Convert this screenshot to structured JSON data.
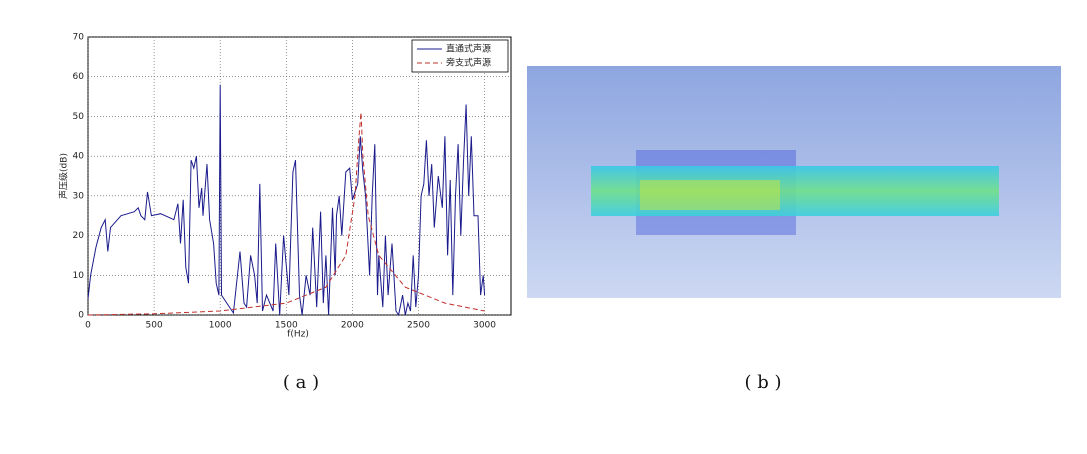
{
  "chart_data": {
    "type": "line",
    "xlabel": "f(Hz)",
    "ylabel": "声压级(dB)",
    "xlim": [
      0,
      3200
    ],
    "xticks": [
      0,
      500,
      1000,
      1500,
      2000,
      2500,
      3000
    ],
    "ylim": [
      0,
      70
    ],
    "yticks": [
      0,
      10,
      20,
      30,
      40,
      50,
      60,
      70
    ],
    "grid": true,
    "legend": "upper right",
    "series": [
      {
        "name": "直通式声源",
        "color": "#1a1a8c",
        "style": "solid",
        "x": [
          0,
          20,
          60,
          100,
          130,
          150,
          170,
          250,
          350,
          380,
          400,
          430,
          450,
          480,
          550,
          650,
          680,
          700,
          720,
          740,
          760,
          780,
          800,
          820,
          840,
          860,
          870,
          900,
          920,
          950,
          970,
          990,
          1000,
          1010,
          1050,
          1100,
          1150,
          1180,
          1200,
          1230,
          1260,
          1280,
          1300,
          1320,
          1350,
          1400,
          1420,
          1450,
          1480,
          1520,
          1550,
          1570,
          1600,
          1620,
          1650,
          1680,
          1700,
          1730,
          1760,
          1780,
          1800,
          1820,
          1850,
          1870,
          1880,
          1900,
          1920,
          1950,
          1980,
          2000,
          2040,
          2060,
          2080,
          2100,
          2130,
          2150,
          2170,
          2190,
          2200,
          2230,
          2250,
          2270,
          2300,
          2330,
          2350,
          2380,
          2400,
          2420,
          2440,
          2460,
          2480,
          2500,
          2520,
          2540,
          2560,
          2580,
          2600,
          2620,
          2650,
          2680,
          2700,
          2720,
          2740,
          2760,
          2780,
          2800,
          2820,
          2840,
          2860,
          2880,
          2900,
          2920,
          2950,
          2970,
          2990,
          3000
        ],
        "values": [
          4,
          10,
          17,
          22,
          24,
          16,
          22,
          25,
          26,
          27,
          25,
          24,
          31,
          25,
          25.5,
          24,
          28,
          18,
          29,
          12,
          8,
          39,
          37,
          40,
          27,
          32,
          25,
          38,
          24,
          18,
          8,
          5,
          58,
          5,
          3,
          0.5,
          16,
          3,
          2,
          15,
          10,
          3,
          33,
          1,
          5,
          1,
          18,
          0,
          20,
          5,
          36,
          39,
          5,
          0,
          10,
          5,
          22,
          2,
          26,
          3,
          15,
          0,
          27,
          10,
          25,
          30,
          20,
          36,
          37,
          29,
          33,
          45,
          36,
          30,
          10,
          30,
          43,
          5,
          15,
          2,
          20,
          5,
          18,
          1,
          0,
          5,
          0,
          3,
          1,
          15,
          2,
          10,
          30,
          33,
          44,
          30,
          38,
          22,
          35,
          27,
          45,
          15,
          34,
          5,
          30,
          43,
          20,
          38,
          53,
          30,
          45,
          25,
          25,
          5,
          10,
          5
        ]
      },
      {
        "name": "旁支式声源",
        "color": "#c0302a",
        "style": "dashed",
        "x": [
          0,
          500,
          1000,
          1500,
          1800,
          1950,
          2020,
          2050,
          2065,
          2080,
          2120,
          2200,
          2400,
          2700,
          3000
        ],
        "values": [
          0,
          0.3,
          1,
          3,
          7,
          15,
          30,
          45,
          51,
          40,
          25,
          15,
          7,
          3,
          1
        ]
      }
    ]
  },
  "captions": [
    "( a )",
    "( b )"
  ]
}
